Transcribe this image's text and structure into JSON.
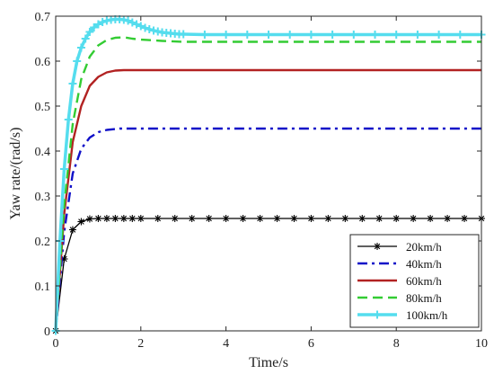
{
  "chart_data": {
    "type": "line",
    "title": "",
    "xlabel": "Time/s",
    "ylabel": "Yaw rate/(rad/s)",
    "xlim": [
      0,
      10
    ],
    "ylim": [
      0,
      0.7
    ],
    "xticks": [
      0,
      2,
      4,
      6,
      8,
      10
    ],
    "yticks": [
      0,
      0.1,
      0.2,
      0.3,
      0.4,
      0.5,
      0.6,
      0.7
    ],
    "grid": false,
    "legend_position": "bottom-right",
    "series": [
      {
        "name": "20km/h",
        "color": "#000000",
        "line_style": "solid",
        "marker": "star",
        "x": [
          0,
          0.2,
          0.4,
          0.6,
          0.8,
          1.0,
          1.2,
          1.4,
          1.6,
          1.8,
          2.0,
          2.4,
          2.8,
          3.2,
          3.6,
          4.0,
          4.4,
          4.8,
          5.2,
          5.6,
          6.0,
          6.4,
          6.8,
          7.2,
          7.6,
          8.0,
          8.4,
          8.8,
          9.2,
          9.6,
          10.0
        ],
        "y": [
          0,
          0.16,
          0.225,
          0.243,
          0.249,
          0.25,
          0.25,
          0.25,
          0.25,
          0.25,
          0.25,
          0.25,
          0.25,
          0.25,
          0.25,
          0.25,
          0.25,
          0.25,
          0.25,
          0.25,
          0.25,
          0.25,
          0.25,
          0.25,
          0.25,
          0.25,
          0.25,
          0.25,
          0.25,
          0.25,
          0.25
        ]
      },
      {
        "name": "40km/h",
        "color": "#1010c8",
        "line_style": "dashdot",
        "marker": "none",
        "x": [
          0,
          0.2,
          0.4,
          0.6,
          0.8,
          1.0,
          1.2,
          1.5,
          2.0,
          3.0,
          4.0,
          6.0,
          8.0,
          10.0
        ],
        "y": [
          0,
          0.22,
          0.35,
          0.405,
          0.43,
          0.442,
          0.447,
          0.45,
          0.45,
          0.45,
          0.45,
          0.45,
          0.45,
          0.45
        ]
      },
      {
        "name": "60km/h",
        "color": "#b22222",
        "line_style": "solid",
        "marker": "none",
        "x": [
          0,
          0.2,
          0.4,
          0.6,
          0.8,
          1.0,
          1.2,
          1.4,
          1.6,
          2.0,
          3.0,
          4.0,
          6.0,
          8.0,
          10.0
        ],
        "y": [
          0,
          0.26,
          0.42,
          0.5,
          0.545,
          0.565,
          0.575,
          0.579,
          0.58,
          0.58,
          0.58,
          0.58,
          0.58,
          0.58,
          0.58
        ]
      },
      {
        "name": "80km/h",
        "color": "#33cc33",
        "line_style": "dashed",
        "marker": "none",
        "x": [
          0,
          0.2,
          0.4,
          0.6,
          0.8,
          1.0,
          1.2,
          1.4,
          1.6,
          1.8,
          2.0,
          2.5,
          3.0,
          4.0,
          6.0,
          8.0,
          10.0
        ],
        "y": [
          0,
          0.28,
          0.46,
          0.56,
          0.61,
          0.635,
          0.647,
          0.652,
          0.653,
          0.65,
          0.648,
          0.645,
          0.643,
          0.643,
          0.643,
          0.643,
          0.643
        ]
      },
      {
        "name": "100km/h",
        "color": "#55ddee",
        "line_style": "solid",
        "marker": "plus",
        "x": [
          0,
          0.1,
          0.2,
          0.3,
          0.4,
          0.5,
          0.6,
          0.7,
          0.8,
          0.9,
          1.0,
          1.1,
          1.2,
          1.3,
          1.4,
          1.5,
          1.6,
          1.7,
          1.8,
          1.9,
          2.0,
          2.1,
          2.2,
          2.3,
          2.4,
          2.5,
          2.6,
          2.7,
          2.8,
          2.9,
          3.0,
          3.5,
          4.0,
          4.5,
          5.0,
          5.5,
          6.0,
          6.5,
          7.0,
          7.5,
          8.0,
          8.5,
          9.0,
          9.5,
          10.0
        ],
        "y": [
          0,
          0.2,
          0.36,
          0.47,
          0.55,
          0.6,
          0.63,
          0.65,
          0.665,
          0.675,
          0.682,
          0.687,
          0.69,
          0.692,
          0.693,
          0.693,
          0.692,
          0.69,
          0.686,
          0.682,
          0.678,
          0.674,
          0.671,
          0.668,
          0.666,
          0.664,
          0.663,
          0.662,
          0.661,
          0.66,
          0.66,
          0.659,
          0.659,
          0.659,
          0.659,
          0.659,
          0.659,
          0.659,
          0.659,
          0.659,
          0.659,
          0.659,
          0.659,
          0.659,
          0.659
        ]
      }
    ]
  }
}
